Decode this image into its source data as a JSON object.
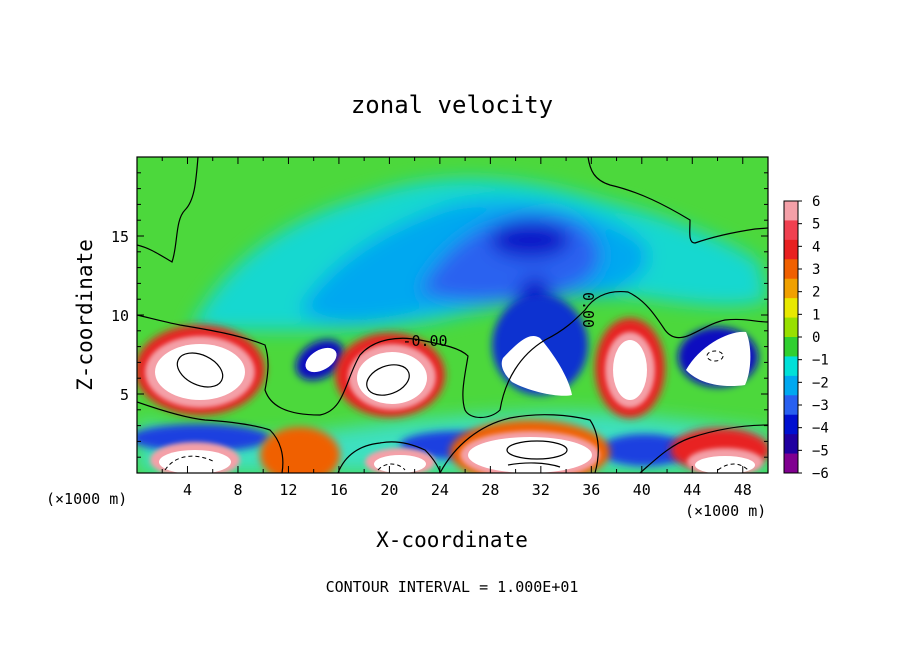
{
  "chart_data": {
    "type": "heatmap",
    "title": "zonal velocity",
    "xlabel": "X-coordinate",
    "ylabel": "Z-coordinate",
    "x_unit": "(×1000 m)",
    "x_unit_right": "(×1000 m)",
    "xlim": [
      0,
      50
    ],
    "ylim": [
      0,
      20
    ],
    "x_ticks": [
      4,
      8,
      12,
      16,
      20,
      24,
      28,
      32,
      36,
      40,
      44,
      48
    ],
    "y_ticks": [
      5,
      10,
      15
    ],
    "colorbar": {
      "ticks": [
        6,
        5,
        4,
        3,
        2,
        1,
        0,
        -1,
        -2,
        -3,
        -4,
        -5,
        -6
      ],
      "tick_labels": [
        "6",
        "5",
        "4",
        "3",
        "2",
        "1",
        "0",
        "−1",
        "−2",
        "−3",
        "−4",
        "−5",
        "−6"
      ],
      "colors": [
        "#f4a0a8",
        "#f04050",
        "#e82020",
        "#f06000",
        "#f0a000",
        "#e8e800",
        "#98e000",
        "#30d030",
        "#00e0d8",
        "#00a8f0",
        "#2860f0",
        "#0010d0",
        "#2000a0",
        "#800090"
      ]
    },
    "contour_labels": [
      {
        "text": "-0.00",
        "x": 24.5,
        "y": 8.3
      },
      {
        "text": "0.00",
        "x": 35.0,
        "y": 10.0
      }
    ],
    "contour_interval_label": "CONTOUR INTERVAL = 1.000E+01",
    "grid": false,
    "background_color": "#50dc40"
  }
}
